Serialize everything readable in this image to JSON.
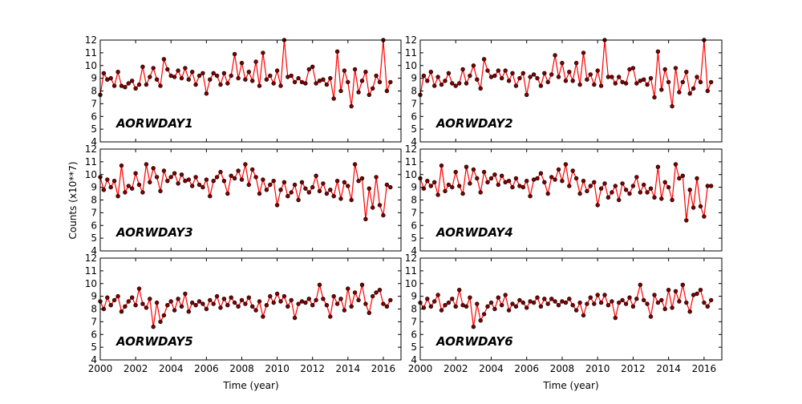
{
  "chart_data": {
    "type": "line",
    "ylabel": "Counts (x10**7)",
    "xlabel": "Time (year)",
    "xlim": [
      2000,
      2017
    ],
    "ylim": [
      4,
      12
    ],
    "x_ticks": [
      "2000",
      "2002",
      "2004",
      "2006",
      "2008",
      "2010",
      "2012",
      "2014",
      "2016"
    ],
    "y_ticks": [
      "4",
      "5",
      "6",
      "7",
      "8",
      "9",
      "10",
      "11",
      "12"
    ],
    "line_color": "#ff0000",
    "marker_color": "#800000",
    "grid": false,
    "panels": [
      {
        "annotation": "AORWDAY1",
        "x": [
          2000.0,
          2000.2,
          2000.4,
          2000.6,
          2000.8,
          2001.0,
          2001.2,
          2001.4,
          2001.6,
          2001.8,
          2002.0,
          2002.2,
          2002.4,
          2002.6,
          2002.8,
          2003.0,
          2003.2,
          2003.4,
          2003.6,
          2003.8,
          2004.0,
          2004.2,
          2004.4,
          2004.6,
          2004.8,
          2005.0,
          2005.2,
          2005.4,
          2005.6,
          2005.8,
          2006.0,
          2006.2,
          2006.4,
          2006.6,
          2006.8,
          2007.0,
          2007.2,
          2007.4,
          2007.6,
          2007.8,
          2008.0,
          2008.2,
          2008.4,
          2008.6,
          2008.8,
          2009.0,
          2009.2,
          2009.4,
          2009.6,
          2009.8,
          2010.0,
          2010.2,
          2010.4,
          2010.6,
          2010.8,
          2011.0,
          2011.2,
          2011.4,
          2011.6,
          2011.8,
          2012.0,
          2012.2,
          2012.4,
          2012.6,
          2012.8,
          2013.0,
          2013.2,
          2013.4,
          2013.6,
          2013.8,
          2014.0,
          2014.2,
          2014.4,
          2014.6,
          2014.8,
          2015.0,
          2015.2,
          2015.4,
          2015.6,
          2015.8,
          2016.0,
          2016.2,
          2016.4
        ],
        "y": [
          7.7,
          9.4,
          8.9,
          9.0,
          8.4,
          9.5,
          8.4,
          8.3,
          8.6,
          8.8,
          8.2,
          8.5,
          9.9,
          8.5,
          9.1,
          9.8,
          8.9,
          8.4,
          10.5,
          9.7,
          9.2,
          9.1,
          9.6,
          9.0,
          9.8,
          8.9,
          9.5,
          8.5,
          9.2,
          9.4,
          7.8,
          8.9,
          9.4,
          9.2,
          8.5,
          9.4,
          8.6,
          9.2,
          10.9,
          9.0,
          10.2,
          8.9,
          9.5,
          8.8,
          10.3,
          8.4,
          11.0,
          8.9,
          9.2,
          8.6,
          9.6,
          8.4,
          12.0,
          9.1,
          9.2,
          8.7,
          9.0,
          8.7,
          8.6,
          9.7,
          9.9,
          8.6,
          8.8,
          8.9,
          8.5,
          9.0,
          7.4,
          11.1,
          8.0,
          9.6,
          8.7,
          6.8,
          9.7,
          7.9,
          8.8,
          9.5,
          7.7,
          8.2,
          9.2,
          8.7,
          12.0,
          8.0,
          8.7
        ]
      },
      {
        "annotation": "AORWDAY2",
        "x": [
          2000.0,
          2000.2,
          2000.4,
          2000.6,
          2000.8,
          2001.0,
          2001.2,
          2001.4,
          2001.6,
          2001.8,
          2002.0,
          2002.2,
          2002.4,
          2002.6,
          2002.8,
          2003.0,
          2003.2,
          2003.4,
          2003.6,
          2003.8,
          2004.0,
          2004.2,
          2004.4,
          2004.6,
          2004.8,
          2005.0,
          2005.2,
          2005.4,
          2005.6,
          2005.8,
          2006.0,
          2006.2,
          2006.4,
          2006.6,
          2006.8,
          2007.0,
          2007.2,
          2007.4,
          2007.6,
          2007.8,
          2008.0,
          2008.2,
          2008.4,
          2008.6,
          2008.8,
          2009.0,
          2009.2,
          2009.4,
          2009.6,
          2009.8,
          2010.0,
          2010.2,
          2010.4,
          2010.6,
          2010.8,
          2011.0,
          2011.2,
          2011.4,
          2011.6,
          2011.8,
          2012.0,
          2012.2,
          2012.4,
          2012.6,
          2012.8,
          2013.0,
          2013.2,
          2013.4,
          2013.6,
          2013.8,
          2014.0,
          2014.2,
          2014.4,
          2014.6,
          2014.8,
          2015.0,
          2015.2,
          2015.4,
          2015.6,
          2015.8,
          2016.0,
          2016.2,
          2016.4
        ],
        "y": [
          7.7,
          9.2,
          8.8,
          9.5,
          8.4,
          9.1,
          8.5,
          8.8,
          9.4,
          8.6,
          8.4,
          8.6,
          9.7,
          8.6,
          9.2,
          10.0,
          8.9,
          8.2,
          10.5,
          9.6,
          9.1,
          9.2,
          9.6,
          9.0,
          9.6,
          8.8,
          9.4,
          8.4,
          9.0,
          9.4,
          7.7,
          9.1,
          9.3,
          9.0,
          8.4,
          9.4,
          8.7,
          9.3,
          10.8,
          9.1,
          10.2,
          8.8,
          9.5,
          8.8,
          10.2,
          8.5,
          11.0,
          8.9,
          9.3,
          8.5,
          9.6,
          8.4,
          12.0,
          9.1,
          9.1,
          8.6,
          9.1,
          8.7,
          8.6,
          9.7,
          9.8,
          8.6,
          8.8,
          8.9,
          8.5,
          9.0,
          7.5,
          11.1,
          8.1,
          9.7,
          8.7,
          6.8,
          9.8,
          7.9,
          8.7,
          9.5,
          7.8,
          8.2,
          9.1,
          8.7,
          12.0,
          8.0,
          8.7
        ]
      },
      {
        "annotation": "AORWDAY3",
        "x": [
          2000.0,
          2000.2,
          2000.4,
          2000.6,
          2000.8,
          2001.0,
          2001.2,
          2001.4,
          2001.6,
          2001.8,
          2002.0,
          2002.2,
          2002.4,
          2002.6,
          2002.8,
          2003.0,
          2003.2,
          2003.4,
          2003.6,
          2003.8,
          2004.0,
          2004.2,
          2004.4,
          2004.6,
          2004.8,
          2005.0,
          2005.2,
          2005.4,
          2005.6,
          2005.8,
          2006.0,
          2006.2,
          2006.4,
          2006.6,
          2006.8,
          2007.0,
          2007.2,
          2007.4,
          2007.6,
          2007.8,
          2008.0,
          2008.2,
          2008.4,
          2008.6,
          2008.8,
          2009.0,
          2009.2,
          2009.4,
          2009.6,
          2009.8,
          2010.0,
          2010.2,
          2010.4,
          2010.6,
          2010.8,
          2011.0,
          2011.2,
          2011.4,
          2011.6,
          2011.8,
          2012.0,
          2012.2,
          2012.4,
          2012.6,
          2012.8,
          2013.0,
          2013.2,
          2013.4,
          2013.6,
          2013.8,
          2014.0,
          2014.2,
          2014.4,
          2014.6,
          2014.8,
          2015.0,
          2015.2,
          2015.4,
          2015.6,
          2015.8,
          2016.0,
          2016.2,
          2016.4
        ],
        "y": [
          9.8,
          8.8,
          9.6,
          9.0,
          9.5,
          8.3,
          10.7,
          8.6,
          9.1,
          8.9,
          10.1,
          9.2,
          8.6,
          10.8,
          9.4,
          10.5,
          9.8,
          8.7,
          10.3,
          9.5,
          9.8,
          10.1,
          9.3,
          10.0,
          9.5,
          9.6,
          9.1,
          9.8,
          9.2,
          9.0,
          9.6,
          8.3,
          9.5,
          9.8,
          10.2,
          9.5,
          8.5,
          9.9,
          9.7,
          10.3,
          9.6,
          10.8,
          9.2,
          10.4,
          9.8,
          8.5,
          9.6,
          8.8,
          9.2,
          9.5,
          7.6,
          8.8,
          9.4,
          8.3,
          8.6,
          9.2,
          8.0,
          9.4,
          8.9,
          8.6,
          9.0,
          9.9,
          8.7,
          9.3,
          8.5,
          8.8,
          8.3,
          9.5,
          8.1,
          9.4,
          9.1,
          8.0,
          10.8,
          9.5,
          9.7,
          6.5,
          8.9,
          7.4,
          9.8,
          7.6,
          6.8,
          9.2,
          9.0
        ]
      },
      {
        "annotation": "AORWDAY4",
        "x": [
          2000.0,
          2000.2,
          2000.4,
          2000.6,
          2000.8,
          2001.0,
          2001.2,
          2001.4,
          2001.6,
          2001.8,
          2002.0,
          2002.2,
          2002.4,
          2002.6,
          2002.8,
          2003.0,
          2003.2,
          2003.4,
          2003.6,
          2003.8,
          2004.0,
          2004.2,
          2004.4,
          2004.6,
          2004.8,
          2005.0,
          2005.2,
          2005.4,
          2005.6,
          2005.8,
          2006.0,
          2006.2,
          2006.4,
          2006.6,
          2006.8,
          2007.0,
          2007.2,
          2007.4,
          2007.6,
          2007.8,
          2008.0,
          2008.2,
          2008.4,
          2008.6,
          2008.8,
          2009.0,
          2009.2,
          2009.4,
          2009.6,
          2009.8,
          2010.0,
          2010.2,
          2010.4,
          2010.6,
          2010.8,
          2011.0,
          2011.2,
          2011.4,
          2011.6,
          2011.8,
          2012.0,
          2012.2,
          2012.4,
          2012.6,
          2012.8,
          2013.0,
          2013.2,
          2013.4,
          2013.6,
          2013.8,
          2014.0,
          2014.2,
          2014.4,
          2014.6,
          2014.8,
          2015.0,
          2015.2,
          2015.4,
          2015.6,
          2015.8,
          2016.0,
          2016.2,
          2016.4
        ],
        "y": [
          9.7,
          8.9,
          9.5,
          9.1,
          9.4,
          8.4,
          10.7,
          8.7,
          9.2,
          9.0,
          10.2,
          9.1,
          8.5,
          10.6,
          9.3,
          10.4,
          9.7,
          8.6,
          10.2,
          9.4,
          9.7,
          10.0,
          9.2,
          9.9,
          9.4,
          9.5,
          9.0,
          9.7,
          9.1,
          9.0,
          9.5,
          8.3,
          9.6,
          9.7,
          10.1,
          9.4,
          8.5,
          9.8,
          9.6,
          10.4,
          9.5,
          10.8,
          9.1,
          10.3,
          9.7,
          8.5,
          9.5,
          8.7,
          9.1,
          9.4,
          7.6,
          8.9,
          9.3,
          8.2,
          8.6,
          9.1,
          8.0,
          9.3,
          8.8,
          8.5,
          9.1,
          9.8,
          8.6,
          9.2,
          8.6,
          8.9,
          8.2,
          10.6,
          8.1,
          9.4,
          9.0,
          8.0,
          10.8,
          9.7,
          9.9,
          6.4,
          8.8,
          7.4,
          9.7,
          7.5,
          6.7,
          9.1,
          9.1
        ]
      },
      {
        "annotation": "AORWDAY5",
        "x": [
          2000.0,
          2000.2,
          2000.4,
          2000.6,
          2000.8,
          2001.0,
          2001.2,
          2001.4,
          2001.6,
          2001.8,
          2002.0,
          2002.2,
          2002.4,
          2002.6,
          2002.8,
          2003.0,
          2003.2,
          2003.4,
          2003.6,
          2003.8,
          2004.0,
          2004.2,
          2004.4,
          2004.6,
          2004.8,
          2005.0,
          2005.2,
          2005.4,
          2005.6,
          2005.8,
          2006.0,
          2006.2,
          2006.4,
          2006.6,
          2006.8,
          2007.0,
          2007.2,
          2007.4,
          2007.6,
          2007.8,
          2008.0,
          2008.2,
          2008.4,
          2008.6,
          2008.8,
          2009.0,
          2009.2,
          2009.4,
          2009.6,
          2009.8,
          2010.0,
          2010.2,
          2010.4,
          2010.6,
          2010.8,
          2011.0,
          2011.2,
          2011.4,
          2011.6,
          2011.8,
          2012.0,
          2012.2,
          2012.4,
          2012.6,
          2012.8,
          2013.0,
          2013.2,
          2013.4,
          2013.6,
          2013.8,
          2014.0,
          2014.2,
          2014.4,
          2014.6,
          2014.8,
          2015.0,
          2015.2,
          2015.4,
          2015.6,
          2015.8,
          2016.0,
          2016.2,
          2016.4
        ],
        "y": [
          8.6,
          8.0,
          8.9,
          8.3,
          8.7,
          9.0,
          7.8,
          8.2,
          8.6,
          8.9,
          8.3,
          9.6,
          8.4,
          8.1,
          8.8,
          6.6,
          8.5,
          7.0,
          7.5,
          8.3,
          8.6,
          7.9,
          8.8,
          8.2,
          9.2,
          7.8,
          8.5,
          8.3,
          8.6,
          8.4,
          8.0,
          8.7,
          8.4,
          9.0,
          8.1,
          8.8,
          8.3,
          8.9,
          8.5,
          8.2,
          8.7,
          8.4,
          8.9,
          8.2,
          7.9,
          8.6,
          7.4,
          8.3,
          9.0,
          8.5,
          9.2,
          8.6,
          9.0,
          8.2,
          8.7,
          7.3,
          8.4,
          8.6,
          8.5,
          8.8,
          8.3,
          8.7,
          9.9,
          8.8,
          8.3,
          7.4,
          9.0,
          8.4,
          8.8,
          7.9,
          9.6,
          8.2,
          9.3,
          8.7,
          9.9,
          8.4,
          7.7,
          9.0,
          9.3,
          9.5,
          8.4,
          8.2,
          8.7
        ]
      },
      {
        "annotation": "AORWDAY6",
        "x": [
          2000.0,
          2000.2,
          2000.4,
          2000.6,
          2000.8,
          2001.0,
          2001.2,
          2001.4,
          2001.6,
          2001.8,
          2002.0,
          2002.2,
          2002.4,
          2002.6,
          2002.8,
          2003.0,
          2003.2,
          2003.4,
          2003.6,
          2003.8,
          2004.0,
          2004.2,
          2004.4,
          2004.6,
          2004.8,
          2005.0,
          2005.2,
          2005.4,
          2005.6,
          2005.8,
          2006.0,
          2006.2,
          2006.4,
          2006.6,
          2006.8,
          2007.0,
          2007.2,
          2007.4,
          2007.6,
          2007.8,
          2008.0,
          2008.2,
          2008.4,
          2008.6,
          2008.8,
          2009.0,
          2009.2,
          2009.4,
          2009.6,
          2009.8,
          2010.0,
          2010.2,
          2010.4,
          2010.6,
          2010.8,
          2011.0,
          2011.2,
          2011.4,
          2011.6,
          2011.8,
          2012.0,
          2012.2,
          2012.4,
          2012.6,
          2012.8,
          2013.0,
          2013.2,
          2013.4,
          2013.6,
          2013.8,
          2014.0,
          2014.2,
          2014.4,
          2014.6,
          2014.8,
          2015.0,
          2015.2,
          2015.4,
          2015.6,
          2015.8,
          2016.0,
          2016.2,
          2016.4
        ],
        "y": [
          8.5,
          8.1,
          8.8,
          8.2,
          8.6,
          9.1,
          7.9,
          8.3,
          8.5,
          8.8,
          8.2,
          9.5,
          8.3,
          8.2,
          8.9,
          6.6,
          8.4,
          7.1,
          7.6,
          8.2,
          8.5,
          8.0,
          8.9,
          8.3,
          9.1,
          7.9,
          8.4,
          8.2,
          8.7,
          8.5,
          8.1,
          8.6,
          8.5,
          8.9,
          8.2,
          8.8,
          8.4,
          8.8,
          8.6,
          8.3,
          8.6,
          8.5,
          8.8,
          8.3,
          7.9,
          8.5,
          7.5,
          8.4,
          8.9,
          8.4,
          9.1,
          8.5,
          9.1,
          8.3,
          8.6,
          7.3,
          8.5,
          8.7,
          8.4,
          8.9,
          8.2,
          8.8,
          9.9,
          8.7,
          8.4,
          7.4,
          9.1,
          8.5,
          8.7,
          8.0,
          9.5,
          8.1,
          9.4,
          8.6,
          9.9,
          8.5,
          7.8,
          9.1,
          9.2,
          9.5,
          8.5,
          8.2,
          8.7
        ]
      }
    ]
  }
}
